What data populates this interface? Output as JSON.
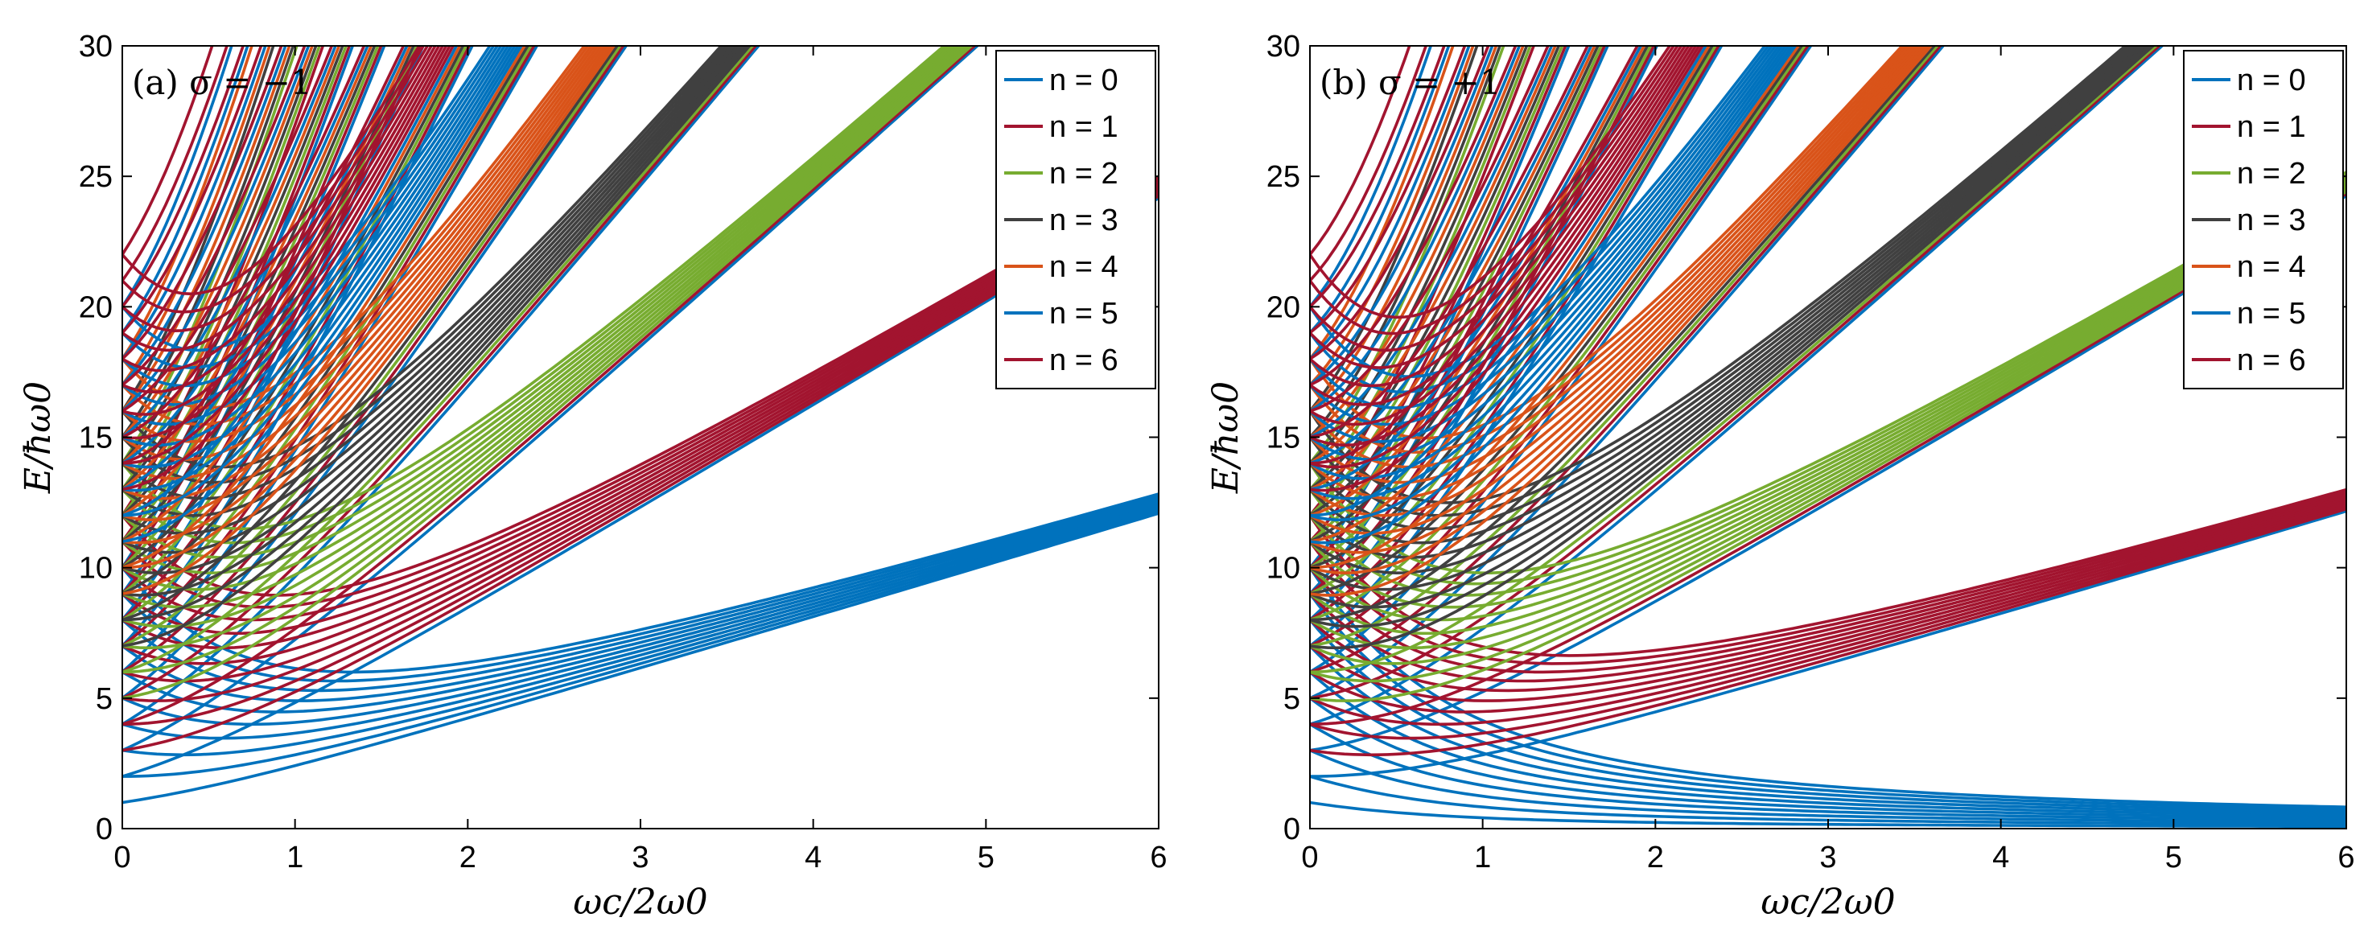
{
  "chart_data": [
    {
      "type": "line",
      "panel": "a",
      "title": "(a) σ = −1",
      "sigma": -1,
      "xlabel": "ωc/2ω0",
      "ylabel": "E/ħω0",
      "xlim": [
        0,
        6
      ],
      "ylim": [
        0,
        30
      ],
      "xticks": [
        "0",
        "1",
        "2",
        "3",
        "4",
        "5",
        "6"
      ],
      "yticks": [
        "0",
        "5",
        "10",
        "15",
        "20",
        "25",
        "30"
      ],
      "legend_position": "top-right",
      "model": "E = (2n + |m| + 1)·sqrt(1 + b²) − (m + σ)·b, b = ωc/2ω0, m = −9…9",
      "series": [
        {
          "name": "n = 0",
          "n": 0,
          "color": "#0072BD"
        },
        {
          "name": "n = 1",
          "n": 1,
          "color": "#A2142F"
        },
        {
          "name": "n = 2",
          "n": 2,
          "color": "#77AC30"
        },
        {
          "name": "n = 3",
          "n": 3,
          "color": "#404040"
        },
        {
          "name": "n = 4",
          "n": 4,
          "color": "#D95319"
        },
        {
          "name": "n = 5",
          "n": 5,
          "color": "#0072BD"
        },
        {
          "name": "n = 6",
          "n": 6,
          "color": "#A2142F"
        }
      ]
    },
    {
      "type": "line",
      "panel": "b",
      "title": "(b) σ = +1",
      "sigma": 1,
      "xlabel": "ωc/2ω0",
      "ylabel": "E/ħω0",
      "xlim": [
        0,
        6
      ],
      "ylim": [
        0,
        30
      ],
      "xticks": [
        "0",
        "1",
        "2",
        "3",
        "4",
        "5",
        "6"
      ],
      "yticks": [
        "0",
        "5",
        "10",
        "15",
        "20",
        "25",
        "30"
      ],
      "legend_position": "top-right",
      "model": "E = (2n + |m| + 1)·sqrt(1 + b²) − (m + σ)·b, b = ωc/2ω0, m = −9…9",
      "series": [
        {
          "name": "n = 0",
          "n": 0,
          "color": "#0072BD"
        },
        {
          "name": "n = 1",
          "n": 1,
          "color": "#A2142F"
        },
        {
          "name": "n = 2",
          "n": 2,
          "color": "#77AC30"
        },
        {
          "name": "n = 3",
          "n": 3,
          "color": "#404040"
        },
        {
          "name": "n = 4",
          "n": 4,
          "color": "#D95319"
        },
        {
          "name": "n = 5",
          "n": 5,
          "color": "#0072BD"
        },
        {
          "name": "n = 6",
          "n": 6,
          "color": "#A2142F"
        }
      ]
    }
  ]
}
